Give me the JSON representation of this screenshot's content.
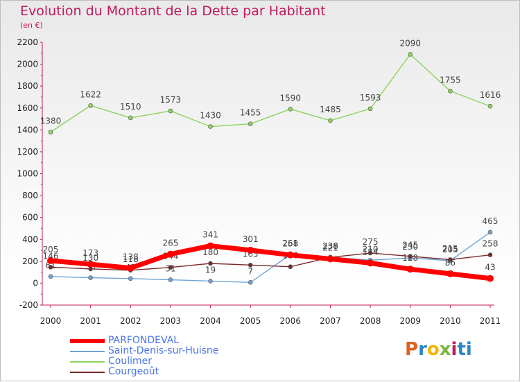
{
  "title": "Evolution du Montant de la Dette par Habitant",
  "subtitle": "(en €)",
  "logo": [
    "P",
    "r",
    "o",
    "x",
    "i",
    "ti"
  ],
  "chart_data": {
    "type": "line",
    "title": "Evolution du Montant de la Dette par Habitant",
    "subtitle": "(en €)",
    "categories": [
      "2000",
      "2001",
      "2002",
      "2003",
      "2004",
      "2005",
      "2006",
      "2007",
      "2008",
      "2009",
      "2010",
      "2011"
    ],
    "ylim": [
      -200,
      2200
    ],
    "yticks": [
      -200,
      0,
      200,
      400,
      600,
      800,
      1000,
      1200,
      1400,
      1600,
      1800,
      2000,
      2200
    ],
    "grid": false,
    "legend_position": "bottom-left",
    "series": [
      {
        "name": "Coulimer",
        "color": "#8bd45a",
        "values": [
          1380,
          1622,
          1510,
          1573,
          1430,
          1455,
          1590,
          1485,
          1593,
          2090,
          1755,
          1616
        ]
      },
      {
        "name": "Saint-Denis-sur-Huisne",
        "color": "#6ea3d6",
        "values": [
          61,
          50,
          42,
          31,
          19,
          7,
          261,
          238,
          210,
          230,
          205,
          465
        ],
        "labels": [
          "61",
          "50",
          "42",
          "31",
          "19",
          "7",
          "261",
          "238",
          "210",
          "230",
          "205",
          "465"
        ]
      },
      {
        "name": "Courgeoût",
        "color": "#7a2a2a",
        "values": [
          146,
          130,
          118,
          144,
          180,
          165,
          150,
          236,
          275,
          245,
          215,
          258
        ],
        "labels": [
          "146",
          "130",
          "118",
          "144",
          "180",
          "165",
          "150",
          "236",
          "275",
          "245",
          "215",
          "258"
        ]
      },
      {
        "name": "PARFONDEVAL",
        "color": "#ff0000",
        "values": [
          205,
          173,
          138,
          265,
          341,
          301,
          258,
          221,
          184,
          128,
          86,
          43
        ],
        "labels": [
          "205",
          "173",
          "138",
          "265",
          "341",
          "301",
          "258",
          "221",
          "184",
          "128",
          "86",
          "43"
        ]
      }
    ]
  }
}
